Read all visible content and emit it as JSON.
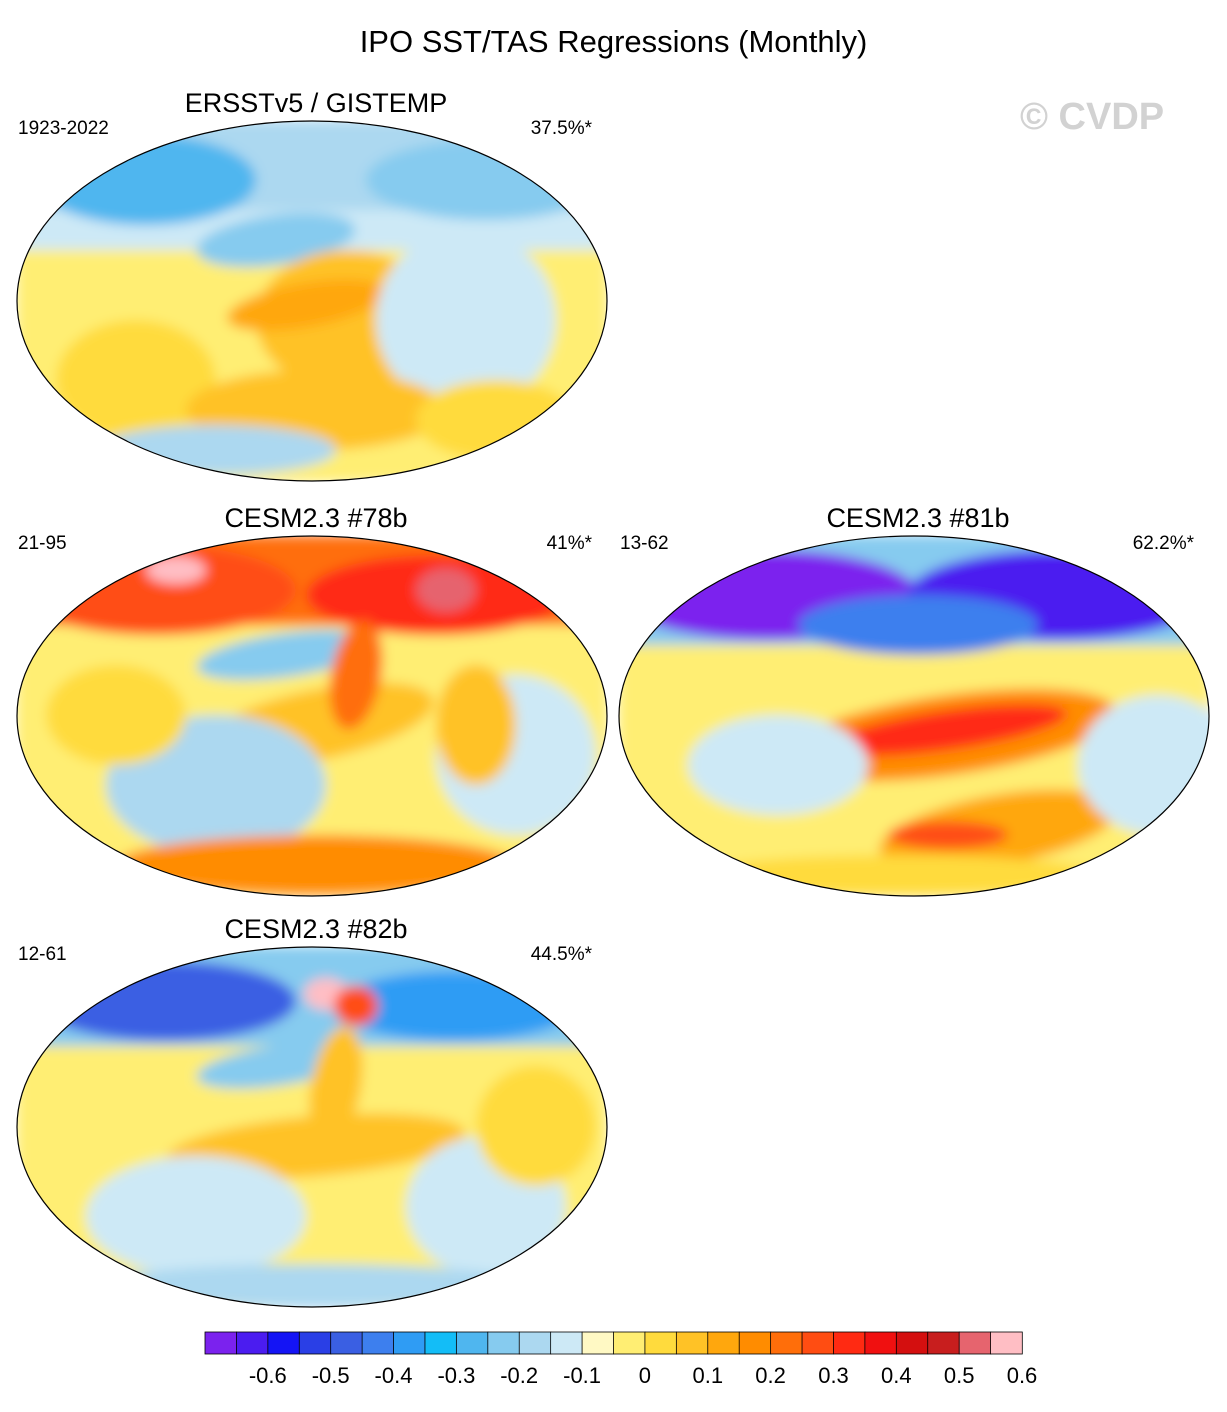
{
  "title": "IPO SST/TAS Regressions (Monthly)",
  "watermark": "© CVDP",
  "panels": [
    {
      "name": "ERSSTv5 / GISTEMP",
      "years": "1923-2022",
      "pct": "37.5%*",
      "pattern": "obs"
    },
    {
      "name": "CESM2.3 #78b",
      "years": "21-95",
      "pct": "41%*",
      "pattern": "m78"
    },
    {
      "name": "CESM2.3 #81b",
      "years": "13-62",
      "pct": "62.2%*",
      "pattern": "m81"
    },
    {
      "name": "CESM2.3 #82b",
      "years": "12-61",
      "pct": "44.5%*",
      "pattern": "m82"
    }
  ],
  "colorbar": {
    "colors": [
      "#7b22ee",
      "#4b1cf0",
      "#1414f5",
      "#2a3fe6",
      "#3a5fe3",
      "#3d7fee",
      "#2f9cf4",
      "#13bdf7",
      "#4fb6ef",
      "#86cbef",
      "#acd8f0",
      "#cde9f6",
      "#fff9c4",
      "#ffee73",
      "#ffdb3d",
      "#ffc226",
      "#ffa70d",
      "#ff8c00",
      "#ff6e0a",
      "#ff4d12",
      "#ff2a12",
      "#f01010",
      "#d40f0f",
      "#c81e1e",
      "#e6646e",
      "#ffbec4"
    ],
    "labels": [
      "-0.6",
      "-0.5",
      "-0.4",
      "-0.3",
      "-0.2",
      "-0.1",
      "0",
      "0.1",
      "0.2",
      "0.3",
      "0.4",
      "0.5",
      "0.6"
    ]
  }
}
